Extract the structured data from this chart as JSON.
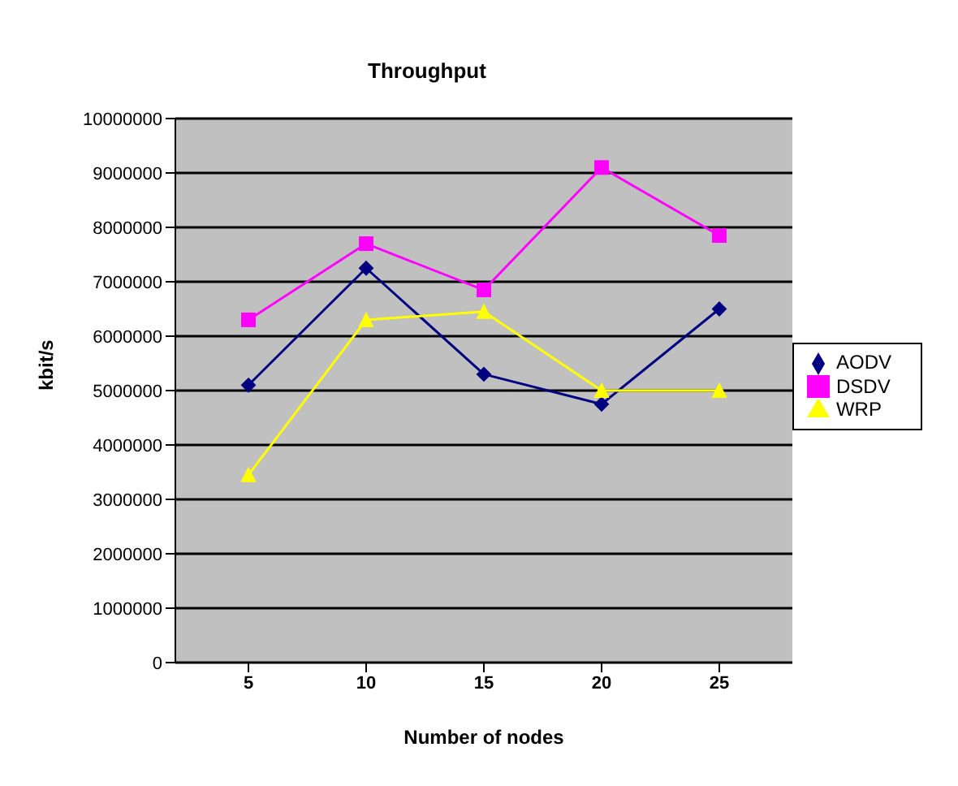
{
  "chart_data": {
    "type": "line",
    "title": "Throughput",
    "xlabel": "Number of nodes",
    "ylabel": "kbit/s",
    "categories": [
      "5",
      "10",
      "15",
      "20",
      "25"
    ],
    "series": [
      {
        "name": "AODV",
        "color": "#000080",
        "marker": "diamond",
        "values": [
          5100000,
          7250000,
          5300000,
          4750000,
          6500000
        ]
      },
      {
        "name": "DSDV",
        "color": "#ff00ff",
        "marker": "square",
        "values": [
          6300000,
          7700000,
          6850000,
          9100000,
          7850000
        ]
      },
      {
        "name": "WRP",
        "color": "#ffff00",
        "marker": "triangle",
        "values": [
          3450000,
          6300000,
          6450000,
          5000000,
          5000000
        ]
      }
    ],
    "ylim": [
      0,
      10000000
    ],
    "yticks": [
      0,
      1000000,
      2000000,
      3000000,
      4000000,
      5000000,
      6000000,
      7000000,
      8000000,
      9000000,
      10000000
    ],
    "grid": "y",
    "legend": "right"
  }
}
